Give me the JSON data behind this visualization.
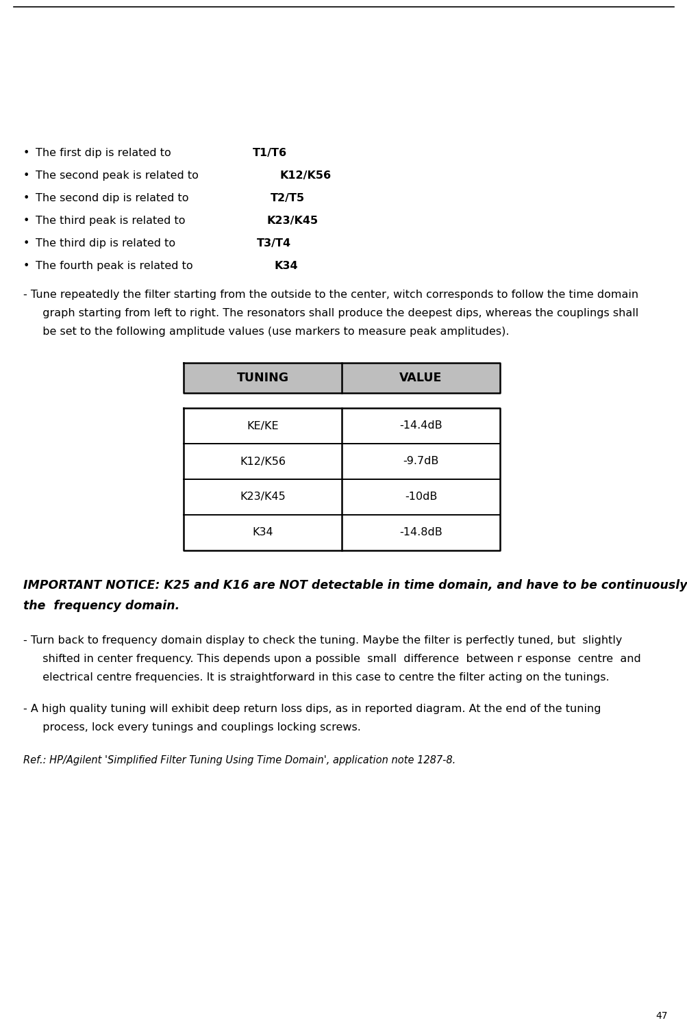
{
  "page_number": "47",
  "bg_color": "#ffffff",
  "top_line_color": "#000000",
  "bullet_items": [
    {
      "normal": "The first dip is related to ",
      "bold": "T1/T6"
    },
    {
      "normal": "The second peak is related to ",
      "bold": "K12/K56"
    },
    {
      "normal": "The second dip is related to ",
      "bold": "T2/T5"
    },
    {
      "normal": "The third peak is related to ",
      "bold": "K23/K45"
    },
    {
      "normal": "The third dip is related to ",
      "bold": "T3/T4"
    },
    {
      "normal": "The fourth peak is related to ",
      "bold": "K34"
    }
  ],
  "tune_line1": "- Tune repeatedly the filter starting from the outside to the center, witch corresponds to follow the time domain",
  "tune_line2": "  graph starting from left to right. The resonators shall produce the deepest dips, whereas the couplings shall",
  "tune_line3": "  be set to the following amplitude values (use markers to measure peak amplitudes).",
  "table_header": [
    "TUNING",
    "VALUE"
  ],
  "table_header_bg": "#bebebe",
  "table_data": [
    [
      "KE/KE",
      "-14.4dB"
    ],
    [
      "K12/K56",
      "-9.7dB"
    ],
    [
      "K23/K45",
      "-10dB"
    ],
    [
      "K34",
      "-14.8dB"
    ]
  ],
  "important_line1": "IMPORTANT NOTICE: K25 and K16 are NOT detectable in time domain, and have to be continuously set in",
  "important_line2": "the  frequency domain.",
  "para2_line1": "- Turn back to frequency domain display to check the tuning. Maybe the filter is perfectly tuned, but  slightly",
  "para2_line2": "  shifted in center frequency. This depends upon a possible  small  difference  between r esponse  centre  and",
  "para2_line3": "  electrical centre frequencies. It is straightforward in this case to centre the filter acting on the tunings.",
  "para3_line1": "- A high quality tuning will exhibit deep return loss dips, as in reported diagram. At the end of the tuning",
  "para3_line2": "  process, lock every tunings and couplings locking screws.",
  "ref_text": "Ref.: HP/Agilent 'Simplified Filter Tuning Using Time Domain', application note 1287-8.",
  "font_size_body": 11.5,
  "font_size_table_header": 12.5,
  "font_size_table_body": 11.5,
  "font_size_important": 12.5,
  "font_size_ref": 10.5
}
